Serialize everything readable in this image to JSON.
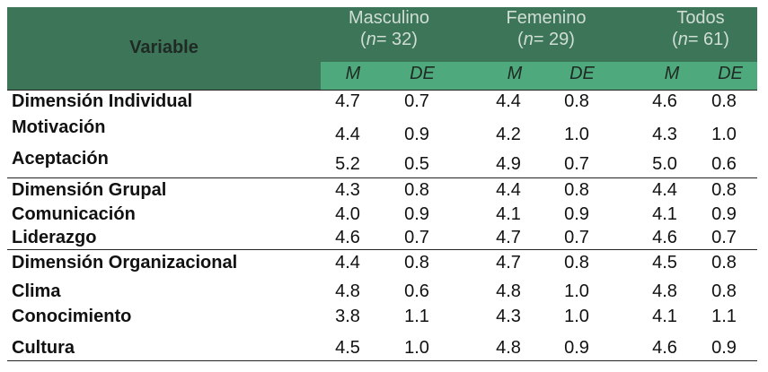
{
  "header": {
    "variable_label": "Variable",
    "groups": [
      {
        "name": "Masculino",
        "n_label": "n",
        "n_value": "= 32"
      },
      {
        "name": "Femenino",
        "n_label": "n",
        "n_value": "= 29"
      },
      {
        "name": "Todos",
        "n_label": "n",
        "n_value": "= 61"
      }
    ],
    "sub_m": "M",
    "sub_de": "DE"
  },
  "rows": [
    {
      "label": "Dimensión Individual",
      "v": [
        "4.7",
        "0.7",
        "4.4",
        "0.8",
        "4.6",
        "0.8"
      ]
    },
    {
      "label": "Motivación",
      "v": [
        "4.4",
        "0.9",
        "4.2",
        "1.0",
        "4.3",
        "1.0"
      ]
    },
    {
      "label": "Aceptación",
      "v": [
        "5.2",
        "0.5",
        "4.9",
        "0.7",
        "5.0",
        "0.6"
      ]
    },
    {
      "label": "Dimensión Grupal",
      "v": [
        "4.3",
        "0.8",
        "4.4",
        "0.8",
        "4.4",
        "0.8"
      ]
    },
    {
      "label": "Comunicación",
      "v": [
        "4.0",
        "0.9",
        "4.1",
        "0.9",
        "4.1",
        "0.9"
      ]
    },
    {
      "label": "Liderazgo",
      "v": [
        "4.6",
        "0.7",
        "4.7",
        "0.7",
        "4.6",
        "0.7"
      ]
    },
    {
      "label": "Dimensión Organizacional",
      "v": [
        "4.4",
        "0.8",
        "4.7",
        "0.8",
        "4.5",
        "0.8"
      ]
    },
    {
      "label": "Clima",
      "v": [
        "4.8",
        "0.6",
        "4.8",
        "1.0",
        "4.8",
        "0.8"
      ]
    },
    {
      "label": "Conocimiento",
      "v": [
        "3.8",
        "1.1",
        "4.3",
        "1.0",
        "4.1",
        "1.1"
      ]
    },
    {
      "label": "Cultura",
      "v": [
        "4.5",
        "1.0",
        "4.8",
        "0.9",
        "4.6",
        "0.9"
      ]
    }
  ],
  "colors": {
    "header_dark": "#3c7557",
    "header_light": "#4ea97c",
    "header_text": "#d0ddd5"
  }
}
